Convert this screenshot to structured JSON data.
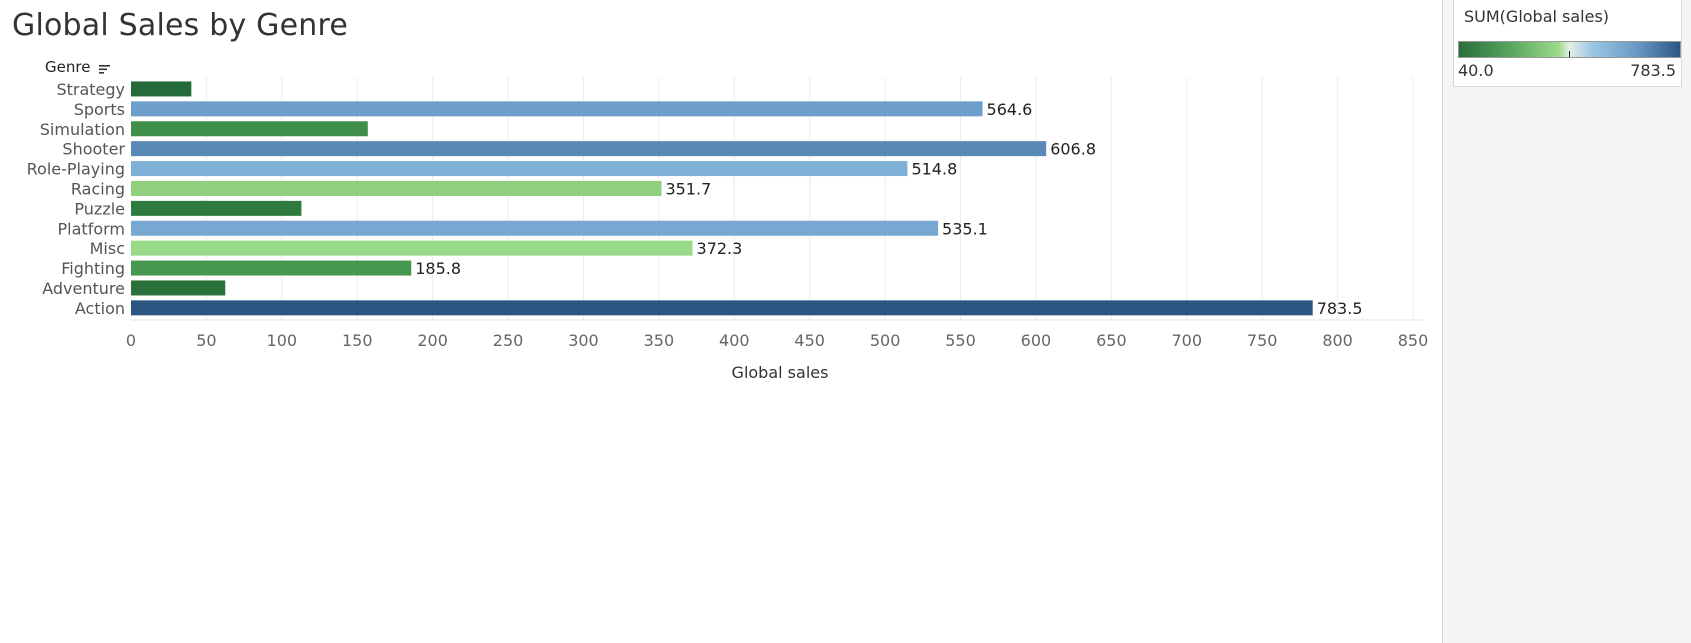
{
  "title": "Global Sales by Genre",
  "header": {
    "genre_label": "Genre"
  },
  "legend": {
    "title": "SUM(Global sales)",
    "min_label": "40.0",
    "max_label": "783.5",
    "ramp_colors": [
      "#2a6e3b",
      "#9bd98a",
      "#9cc6e4",
      "#2a5683"
    ]
  },
  "chart_data": {
    "type": "bar",
    "orientation": "horizontal",
    "xlabel": "Global sales",
    "ylabel": "Genre",
    "xlim": [
      0,
      850
    ],
    "xticks": [
      0,
      50,
      100,
      150,
      200,
      250,
      300,
      350,
      400,
      450,
      500,
      550,
      600,
      650,
      700,
      750,
      800,
      850
    ],
    "grid": true,
    "categories": [
      "Strategy",
      "Sports",
      "Simulation",
      "Shooter",
      "Role-Playing",
      "Racing",
      "Puzzle",
      "Platform",
      "Misc",
      "Fighting",
      "Adventure",
      "Action"
    ],
    "values": [
      40.0,
      564.6,
      157.0,
      606.8,
      514.8,
      351.7,
      113.0,
      535.1,
      372.3,
      185.8,
      62.5,
      783.5
    ],
    "data_labels": [
      "",
      "564.6",
      "",
      "606.8",
      "514.8",
      "351.7",
      "",
      "535.1",
      "372.3",
      "185.8",
      "",
      "783.5"
    ],
    "colors": [
      "#256b3a",
      "#6e9fca",
      "#3f8f4a",
      "#5b89b7",
      "#7fb0d6",
      "#8fd07e",
      "#2f7a3f",
      "#78a8d2",
      "#99da88",
      "#47984f",
      "#2a713c",
      "#2c5682"
    ]
  }
}
